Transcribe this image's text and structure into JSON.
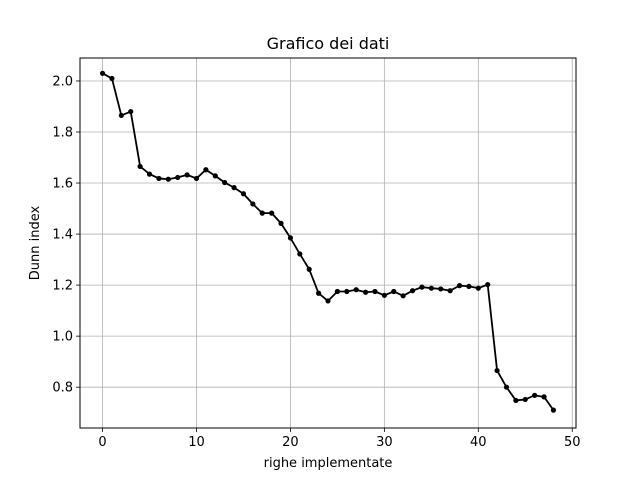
{
  "chart_data": {
    "type": "line",
    "title": "Grafico dei dati",
    "xlabel": "righe implementate",
    "ylabel": "Dunn index",
    "xlim": [
      -2.4,
      50.4
    ],
    "ylim": [
      0.64,
      2.09
    ],
    "xticks": [
      0,
      10,
      20,
      30,
      40,
      50
    ],
    "yticks": [
      0.8,
      1.0,
      1.2,
      1.4,
      1.6,
      1.8,
      2.0
    ],
    "grid": true,
    "series": [
      {
        "color": "#000000",
        "marker": "circle",
        "x": [
          0,
          1,
          2,
          3,
          4,
          5,
          6,
          7,
          8,
          9,
          10,
          11,
          12,
          13,
          14,
          15,
          16,
          17,
          18,
          19,
          20,
          21,
          22,
          23,
          24,
          25,
          26,
          27,
          28,
          29,
          30,
          31,
          32,
          33,
          34,
          35,
          36,
          37,
          38,
          39,
          40,
          41,
          42,
          43,
          44,
          45,
          46,
          47,
          48
        ],
        "values": [
          2.03,
          2.01,
          1.865,
          1.88,
          1.665,
          1.635,
          1.618,
          1.615,
          1.622,
          1.632,
          1.618,
          1.652,
          1.628,
          1.602,
          1.582,
          1.558,
          1.518,
          1.482,
          1.482,
          1.442,
          1.385,
          1.322,
          1.262,
          1.168,
          1.138,
          1.175,
          1.175,
          1.182,
          1.172,
          1.175,
          1.16,
          1.175,
          1.158,
          1.178,
          1.192,
          1.188,
          1.185,
          1.178,
          1.198,
          1.195,
          1.188,
          1.202,
          0.865,
          0.8,
          0.748,
          0.752,
          0.768,
          0.762,
          0.71
        ]
      }
    ]
  }
}
